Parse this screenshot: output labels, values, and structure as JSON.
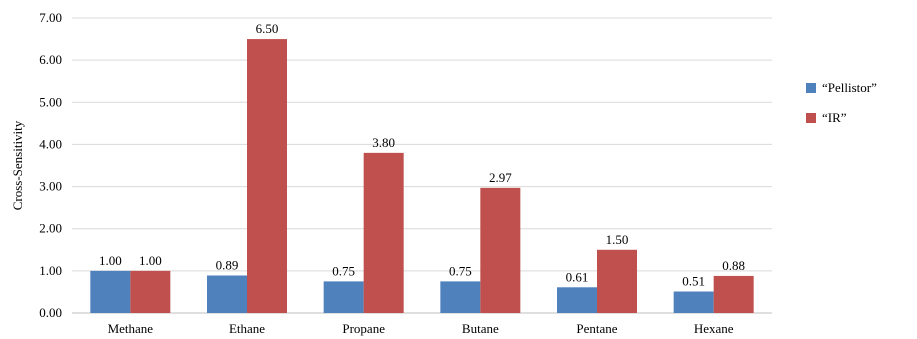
{
  "chart_data": {
    "type": "bar",
    "title": "",
    "xlabel": "",
    "ylabel": "Cross-Sensitivity",
    "ylim": [
      0,
      7
    ],
    "yticks": [
      "0.00",
      "1.00",
      "2.00",
      "3.00",
      "4.00",
      "5.00",
      "6.00",
      "7.00"
    ],
    "grid": true,
    "legend_position": "right",
    "categories": [
      "Methane",
      "Ethane",
      "Propane",
      "Butane",
      "Pentane",
      "Hexane"
    ],
    "series": [
      {
        "name": "“Pellistor”",
        "color": "#4f81bd",
        "values": [
          1.0,
          0.89,
          0.75,
          0.75,
          0.61,
          0.51
        ],
        "labels": [
          "1.00",
          "0.89",
          "0.75",
          "0.75",
          "0.61",
          "0.51"
        ]
      },
      {
        "name": "“IR”",
        "color": "#c0504d",
        "values": [
          1.0,
          6.5,
          3.8,
          2.97,
          1.5,
          0.88
        ],
        "labels": [
          "1.00",
          "6.50",
          "3.80",
          "2.97",
          "1.50",
          "0.88"
        ]
      }
    ]
  }
}
